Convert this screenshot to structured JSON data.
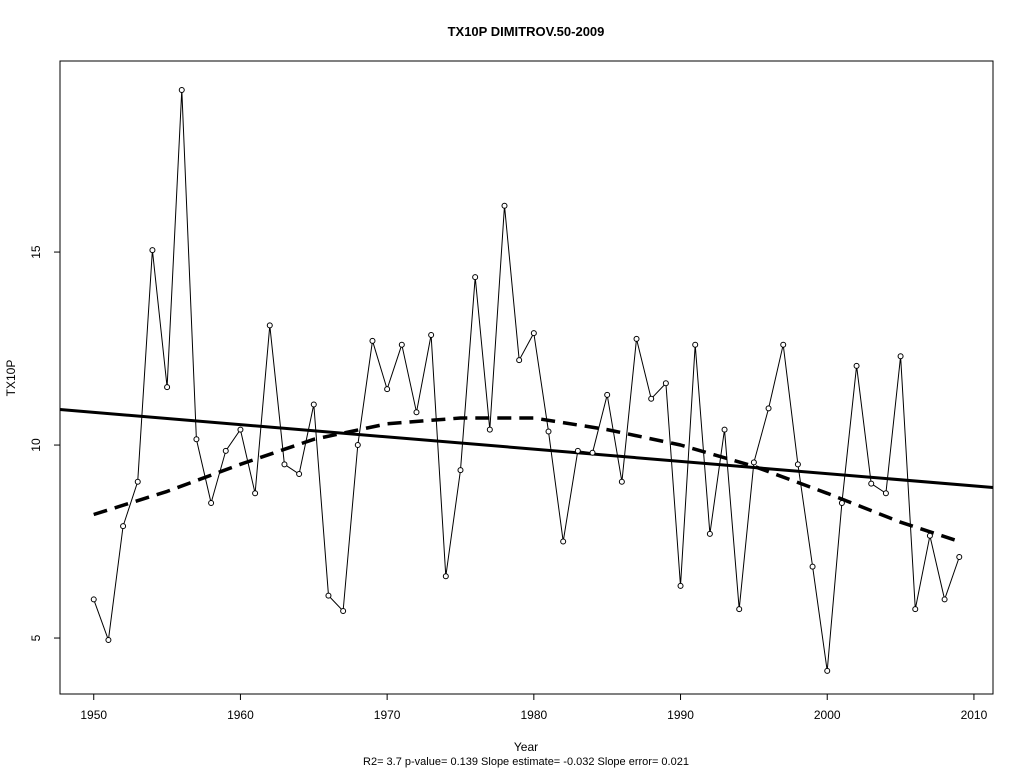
{
  "chart_data": {
    "type": "line",
    "title": "TX10P    DIMITROV.50-2009",
    "xlabel": "Year",
    "ylabel": "TX10P",
    "footnote": "R2= 3.7  p-value= 0.139  Slope estimate= -0.032  Slope error= 0.021",
    "xlim": [
      1947.7,
      2011.3
    ],
    "ylim": [
      3.55,
      19.95
    ],
    "xticks": [
      1950,
      1960,
      1970,
      1980,
      1990,
      2000,
      2010
    ],
    "yticks": [
      5,
      10,
      15
    ],
    "grid": false,
    "series": [
      {
        "style": "line-with-open-circles",
        "x": [
          1950,
          1951,
          1952,
          1953,
          1954,
          1955,
          1956,
          1957,
          1958,
          1959,
          1960,
          1961,
          1962,
          1963,
          1964,
          1965,
          1966,
          1967,
          1968,
          1969,
          1970,
          1971,
          1972,
          1973,
          1974,
          1975,
          1976,
          1977,
          1978,
          1979,
          1980,
          1981,
          1982,
          1983,
          1984,
          1985,
          1986,
          1987,
          1988,
          1989,
          1990,
          1991,
          1992,
          1993,
          1994,
          1995,
          1996,
          1997,
          1998,
          1999,
          2000,
          2001,
          2002,
          2003,
          2004,
          2005,
          2006,
          2007,
          2008,
          2009
        ],
        "y": [
          6.0,
          4.95,
          7.9,
          9.05,
          15.05,
          11.5,
          19.2,
          10.15,
          8.5,
          9.85,
          10.4,
          8.75,
          13.1,
          9.5,
          9.25,
          11.05,
          6.1,
          5.7,
          10.0,
          12.7,
          11.45,
          12.6,
          10.85,
          12.85,
          6.6,
          9.35,
          14.35,
          10.4,
          16.2,
          12.2,
          12.9,
          10.35,
          7.5,
          9.85,
          9.8,
          11.3,
          9.05,
          12.75,
          11.2,
          11.6,
          6.35,
          12.6,
          7.7,
          10.4,
          5.75,
          9.55,
          10.95,
          12.6,
          9.5,
          6.85,
          4.15,
          8.5,
          12.05,
          9.0,
          8.75,
          12.3,
          5.75,
          7.65,
          6.0,
          7.1
        ]
      },
      {
        "style": "solid-trend",
        "x": [
          1947.7,
          2011.3
        ],
        "y": [
          10.92,
          8.9
        ]
      },
      {
        "style": "dashed-smooth",
        "x": [
          1950,
          1955,
          1960,
          1965,
          1970,
          1975,
          1978,
          1980,
          1985,
          1990,
          1995,
          2000,
          2005,
          2009
        ],
        "y": [
          8.2,
          8.8,
          9.5,
          10.15,
          10.55,
          10.7,
          10.7,
          10.7,
          10.4,
          10.0,
          9.45,
          8.75,
          8.0,
          7.5
        ]
      }
    ]
  }
}
